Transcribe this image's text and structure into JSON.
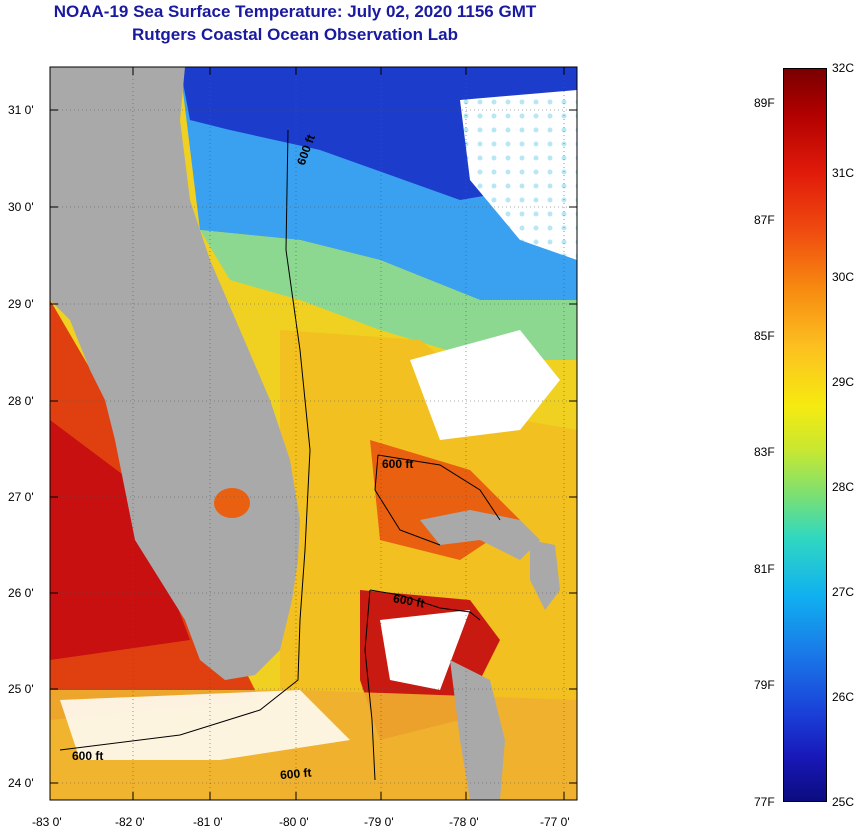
{
  "title": {
    "line1": "NOAA-19 Sea Surface Temperature:  July 02, 2020 1156 GMT",
    "line2": "Rutgers Coastal Ocean Observation Lab"
  },
  "map": {
    "lat_labels": [
      "31 0'",
      "30 0'",
      "29 0'",
      "28 0'",
      "27 0'",
      "26 0'",
      "25 0'",
      "24 0'"
    ],
    "lon_labels": [
      "-83 0'",
      "-82 0'",
      "-81 0'",
      "-80 0'",
      "-79 0'",
      "-78 0'",
      "-77 0'"
    ],
    "contour_labels": [
      "600 ft",
      "600 ft",
      "600 ft",
      "600 ft",
      "600 ft"
    ]
  },
  "colorbar": {
    "celsius": [
      "32C",
      "31C",
      "30C",
      "29C",
      "28C",
      "27C",
      "26C",
      "25C"
    ],
    "fahrenheit": [
      "89F",
      "87F",
      "85F",
      "83F",
      "81F",
      "79F",
      "77F"
    ],
    "top_color": "#7a0000",
    "bottom_color": "#0c0c80"
  }
}
